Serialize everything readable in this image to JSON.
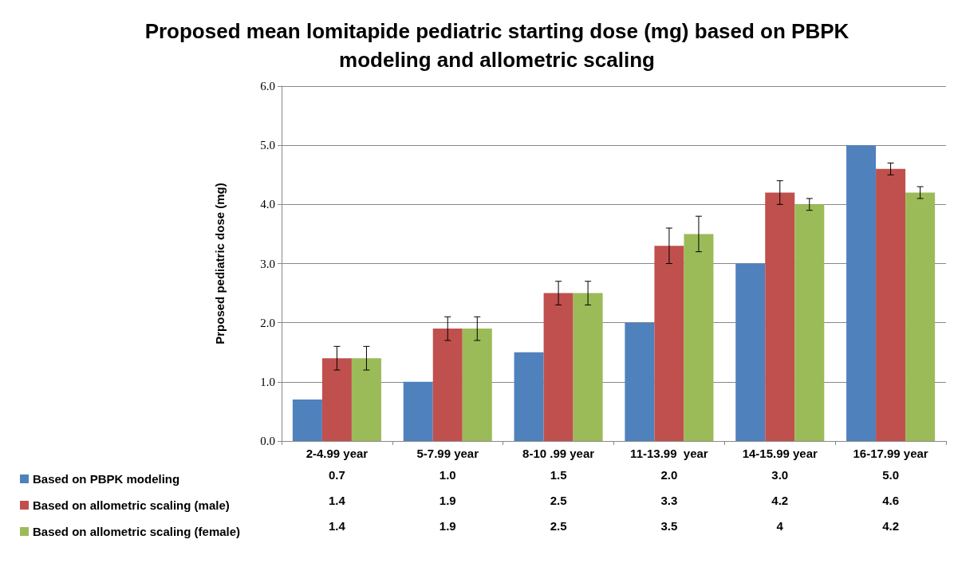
{
  "chart_data": {
    "type": "bar",
    "title": "Proposed mean lomitapide pediatric starting dose (mg) based on PBPK\nmodeling and allometric scaling",
    "ylabel": "Prposed pediatric dose (mg)",
    "categories": [
      "2-4.99 year",
      "5-7.99 year",
      "8-10 .99 year",
      "11-13.99  year",
      "14-15.99 year",
      "16-17.99 year"
    ],
    "series": [
      {
        "name": "Based on PBPK modeling",
        "color": "#4f81bd",
        "values": [
          0.7,
          1.0,
          1.5,
          2.0,
          3.0,
          5.0
        ],
        "value_labels": [
          "0.7",
          "1.0",
          "1.5",
          "2.0",
          "3.0",
          "5.0"
        ]
      },
      {
        "name": "Based on allometric scaling (male)",
        "color": "#c0504d",
        "values": [
          1.4,
          1.9,
          2.5,
          3.3,
          4.2,
          4.6
        ],
        "value_labels": [
          "1.4",
          "1.9",
          "2.5",
          "3.3",
          "4.2",
          "4.6"
        ],
        "errors": [
          0.2,
          0.2,
          0.2,
          0.3,
          0.2,
          0.1
        ]
      },
      {
        "name": "Based on allometric scaling (female)",
        "color": "#9bbb59",
        "values": [
          1.4,
          1.9,
          2.5,
          3.5,
          4.0,
          4.2
        ],
        "value_labels": [
          "1.4",
          "1.9",
          "2.5",
          "3.5",
          "4",
          "4.2"
        ],
        "errors": [
          0.2,
          0.2,
          0.2,
          0.3,
          0.1,
          0.1
        ]
      }
    ],
    "ylim": [
      0,
      6
    ],
    "yticks": [
      {
        "value": 0,
        "label": "0.0"
      },
      {
        "value": 1,
        "label": "1.0"
      },
      {
        "value": 2,
        "label": "2.0"
      },
      {
        "value": 3,
        "label": "3.0"
      },
      {
        "value": 4,
        "label": "4.0"
      },
      {
        "value": 5,
        "label": "5.0"
      },
      {
        "value": 6,
        "label": "6.0"
      }
    ],
    "grid": "y",
    "legend": "bottom left"
  }
}
